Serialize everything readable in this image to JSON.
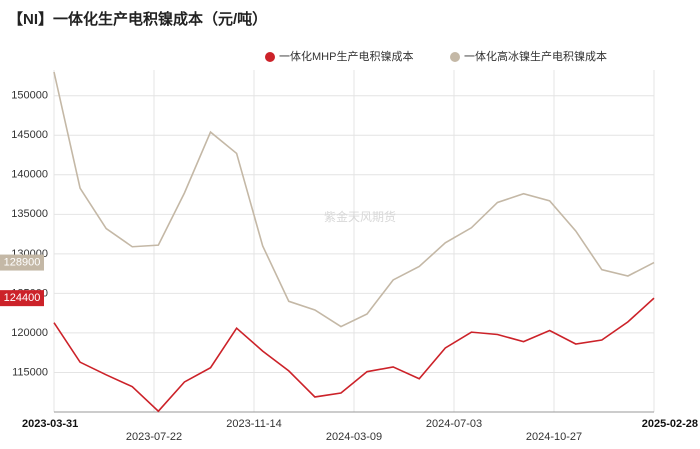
{
  "chart_data": {
    "type": "line",
    "title": "【NI】一体化生产电积镍成本（元/吨）",
    "watermark": "紫金天风期货",
    "xticks": [
      "2023-03-31",
      "2023-07-22",
      "2023-11-14",
      "2024-03-09",
      "2024-07-03",
      "2024-10-27",
      "2025-02-28"
    ],
    "series": [
      {
        "name": "一体化MHP生产电积镍成本",
        "color": "#cc2229",
        "values": [
          121300,
          116300,
          114700,
          113200,
          110100,
          113800,
          115600,
          120600,
          117700,
          115200,
          111900,
          112400,
          115100,
          115700,
          114200,
          118100,
          120100,
          119800,
          118900,
          120300,
          118600,
          119100,
          121400,
          124400
        ]
      },
      {
        "name": "一体化高冰镍生产电积镍成本",
        "color": "#c4b8a6",
        "values": [
          153000,
          138300,
          133200,
          130900,
          131100,
          137700,
          145400,
          142700,
          131000,
          124000,
          122900,
          120800,
          122400,
          126700,
          128400,
          131400,
          133300,
          136500,
          137600,
          136700,
          132900,
          128000,
          127200,
          128900
        ]
      }
    ],
    "ylim": [
      110000,
      153000
    ],
    "yticks": [
      115000,
      120000,
      125000,
      130000,
      135000,
      140000,
      145000,
      150000
    ],
    "grid": true
  }
}
